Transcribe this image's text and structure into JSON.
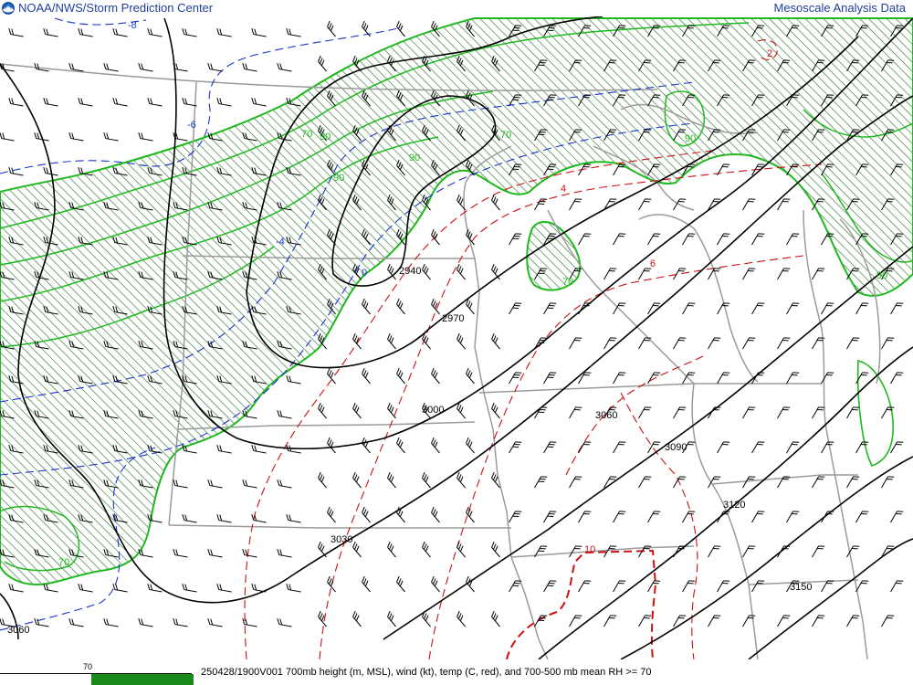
{
  "header": {
    "left_title": "NOAA/NWS/Storm Prediction Center",
    "right_title": "Mesoscale Analysis Data"
  },
  "footer": {
    "caption": "250428/1900V001 700mb height (m, MSL), wind (kt), temp (C, red), and 700-500 mb mean RH >= 70",
    "legend_value": "70"
  },
  "colors": {
    "height": "#000000",
    "temp_cold": "#1a33cc",
    "temp_warm": "#cc1111",
    "rh_outline": "#1fb81f",
    "rh_hatch": "#2f7a2f",
    "borders": "#9a9a9a",
    "header_text": "#1f3f9f"
  },
  "height_contours": [
    {
      "label": "2940"
    },
    {
      "label": "2970"
    },
    {
      "label": "3000"
    },
    {
      "label": "3030"
    },
    {
      "label": "3060"
    },
    {
      "label": "3090"
    },
    {
      "label": "3120"
    },
    {
      "label": "3150"
    }
  ],
  "height_contour_labels": [
    "2940",
    "2970",
    "3000",
    "3030",
    "3060",
    "3060",
    "3090",
    "3120",
    "3150"
  ],
  "temp_labels": [
    "-8",
    "-6",
    "-4",
    "0",
    "2",
    "4",
    "6",
    "10"
  ],
  "rh_labels": [
    "70",
    "90",
    "90",
    "70",
    "70",
    "90",
    "90",
    "70",
    "90"
  ],
  "icons": {
    "logo": "noaa-logo-icon",
    "wind": "wind-barb-icon"
  }
}
